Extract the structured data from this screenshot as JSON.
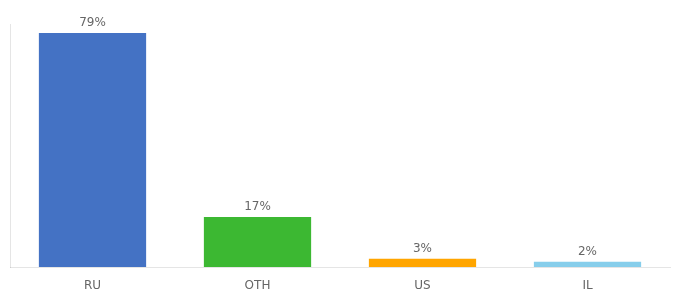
{
  "chart_data": {
    "type": "bar",
    "categories": [
      "RU",
      "OTH",
      "US",
      "IL"
    ],
    "values": [
      79,
      17,
      3,
      2
    ],
    "value_labels": [
      "79%",
      "17%",
      "3%",
      "2%"
    ],
    "data_labels": true,
    "colors": [
      "#4472c4",
      "#3cb832",
      "#ffa500",
      "#87ceeb"
    ],
    "ylim": [
      0,
      82
    ],
    "grid": false,
    "tick_labels": "x"
  }
}
